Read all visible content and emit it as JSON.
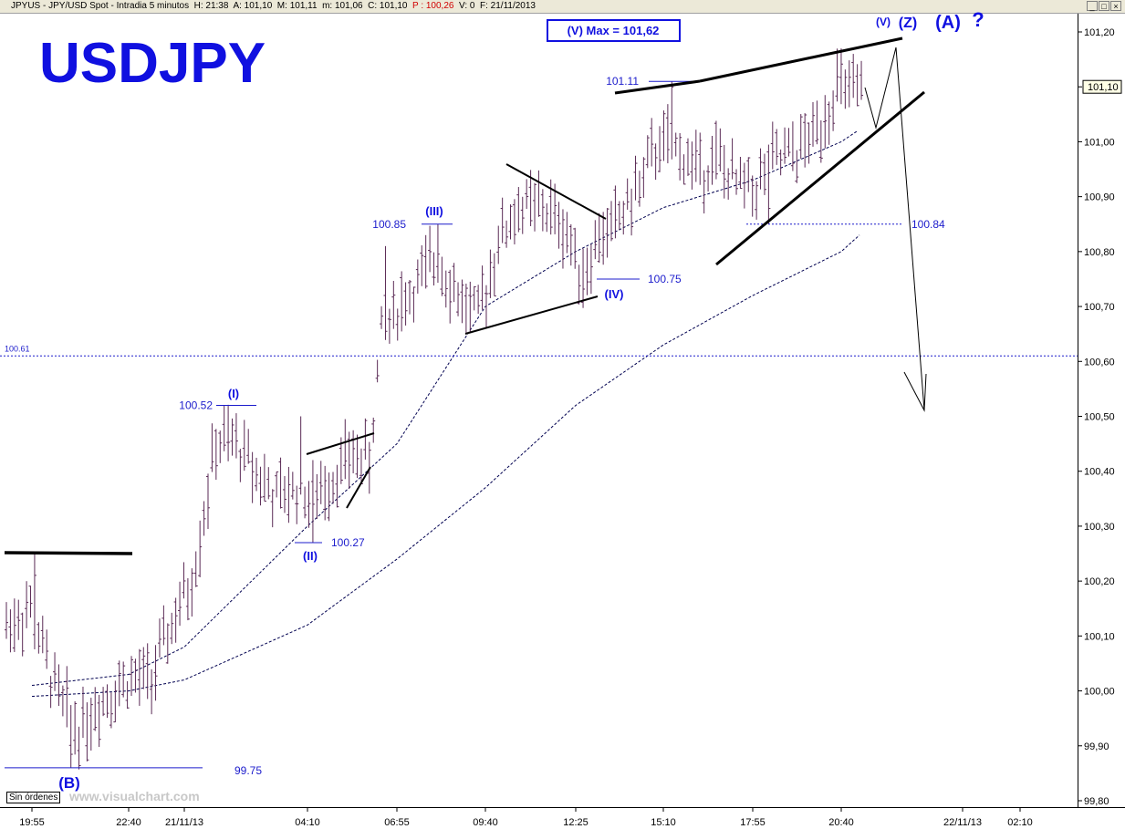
{
  "titlebar": {
    "prefix": "JPYUS - JPY/USD Spot - Intradia 5 minutos  H: 21:38  A: 101,10  M: 101,11  m: 101,06  C: 101,10  ",
    "p_value": "P : 100,26",
    "suffix": "  V: 0  F: 21/11/2013"
  },
  "window_buttons": {
    "minimize": "_",
    "restore": "□",
    "close": "×"
  },
  "badges": {
    "orders": "Sin órdenes",
    "watermark": "www.visualchart.com"
  },
  "colors": {
    "bars": "#5a2a55",
    "annotation_blue": "#1c1ccc",
    "title_blue": "#1010e0",
    "trendline": "#000000",
    "moving_average": "#000050"
  },
  "chart_data": {
    "type": "bar",
    "chart_style": "ohlc-intraday",
    "title": "USDJPY",
    "y_range": [
      99.78,
      101.24
    ],
    "y_ticks": [
      "101,20",
      "101,10",
      "101,00",
      "100,90",
      "100,80",
      "100,70",
      "100,60",
      "100,50",
      "100,40",
      "100,30",
      "100,20",
      "100,10",
      "100,00",
      "99,90",
      "99,80"
    ],
    "x_ticks": [
      "19:55",
      "22:40",
      "21/11/13",
      "04:10",
      "06:55",
      "09:40",
      "12:25",
      "15:10",
      "17:55",
      "20:40",
      "22/11/13",
      "02:10"
    ],
    "last_price_label": "101,10",
    "max_box": "(V) Max = 101,62",
    "horizontal_level": {
      "label": "100.61",
      "value": 100.61
    },
    "price_labels": [
      {
        "text": "99.75",
        "price": 99.86
      },
      {
        "text": "100.52",
        "price": 100.52
      },
      {
        "text": "100.27",
        "price": 100.27
      },
      {
        "text": "100.85",
        "price": 100.85
      },
      {
        "text": "100.75",
        "price": 100.75
      },
      {
        "text": "101.11",
        "price": 101.11
      },
      {
        "text": "100.84",
        "price": 100.85
      }
    ],
    "wave_labels": [
      "(B)",
      "(I)",
      "(II)",
      "(III)",
      "(IV)",
      "(V)",
      "(Z)",
      "(A)",
      "?"
    ],
    "waypoints": [
      {
        "bar": 0,
        "price": 100.12
      },
      {
        "bar": 6,
        "price": 100.15
      },
      {
        "bar": 10,
        "price": 100.05
      },
      {
        "bar": 14,
        "price": 99.97
      },
      {
        "bar": 18,
        "price": 99.93
      },
      {
        "bar": 23,
        "price": 99.98
      },
      {
        "bar": 30,
        "price": 100.02
      },
      {
        "bar": 36,
        "price": 100.02
      },
      {
        "bar": 41,
        "price": 100.12
      },
      {
        "bar": 46,
        "price": 100.2
      },
      {
        "bar": 52,
        "price": 100.45
      },
      {
        "bar": 57,
        "price": 100.45
      },
      {
        "bar": 62,
        "price": 100.4
      },
      {
        "bar": 67,
        "price": 100.35
      },
      {
        "bar": 72,
        "price": 100.37
      },
      {
        "bar": 76,
        "price": 100.35
      },
      {
        "bar": 82,
        "price": 100.4
      },
      {
        "bar": 86,
        "price": 100.43
      },
      {
        "bar": 90,
        "price": 100.42
      },
      {
        "bar": 93,
        "price": 100.65
      },
      {
        "bar": 97,
        "price": 100.7
      },
      {
        "bar": 103,
        "price": 100.75
      },
      {
        "bar": 107,
        "price": 100.79
      },
      {
        "bar": 112,
        "price": 100.72
      },
      {
        "bar": 117,
        "price": 100.68
      },
      {
        "bar": 122,
        "price": 100.82
      },
      {
        "bar": 127,
        "price": 100.88
      },
      {
        "bar": 133,
        "price": 100.88
      },
      {
        "bar": 138,
        "price": 100.85
      },
      {
        "bar": 143,
        "price": 100.76
      },
      {
        "bar": 147,
        "price": 100.82
      },
      {
        "bar": 151,
        "price": 100.85
      },
      {
        "bar": 157,
        "price": 100.92
      },
      {
        "bar": 162,
        "price": 101.0
      },
      {
        "bar": 167,
        "price": 100.98
      },
      {
        "bar": 172,
        "price": 100.95
      },
      {
        "bar": 176,
        "price": 100.97
      },
      {
        "bar": 181,
        "price": 100.92
      },
      {
        "bar": 186,
        "price": 100.92
      },
      {
        "bar": 190,
        "price": 100.96
      },
      {
        "bar": 196,
        "price": 100.98
      },
      {
        "bar": 201,
        "price": 101.02
      },
      {
        "bar": 206,
        "price": 101.1
      },
      {
        "bar": 212,
        "price": 101.08
      }
    ],
    "fast_ma": [
      {
        "x_label": "19:55",
        "price": 100.01
      },
      {
        "x_label": "22:40",
        "price": 100.03
      },
      {
        "x_label": "21/11/13",
        "price": 100.08
      },
      {
        "x_label": "04:10",
        "price": 100.3
      },
      {
        "x_label": "06:55",
        "price": 100.45
      },
      {
        "x_label": "09:40",
        "price": 100.7
      },
      {
        "x_label": "12:25",
        "price": 100.8
      },
      {
        "x_label": "15:10",
        "price": 100.88
      },
      {
        "x_label": "17:55",
        "price": 100.93
      },
      {
        "x_label": "20:40",
        "price": 101.0
      }
    ],
    "slow_ma": [
      {
        "x_label": "19:55",
        "price": 99.99
      },
      {
        "x_label": "22:40",
        "price": 100.0
      },
      {
        "x_label": "21/11/13",
        "price": 100.02
      },
      {
        "x_label": "04:10",
        "price": 100.12
      },
      {
        "x_label": "06:55",
        "price": 100.24
      },
      {
        "x_label": "09:40",
        "price": 100.37
      },
      {
        "x_label": "12:25",
        "price": 100.52
      },
      {
        "x_label": "15:10",
        "price": 100.63
      },
      {
        "x_label": "17:55",
        "price": 100.72
      },
      {
        "x_label": "20:40",
        "price": 100.8
      }
    ]
  }
}
